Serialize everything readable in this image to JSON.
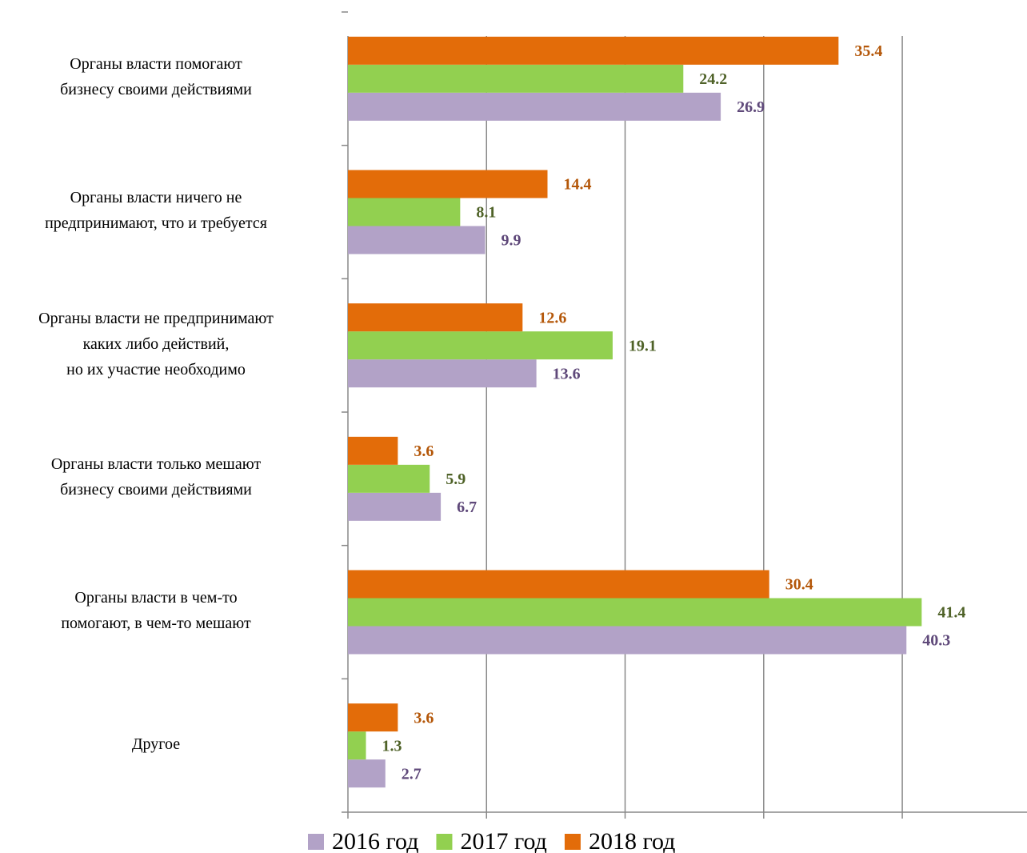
{
  "chart_data": {
    "type": "hbar",
    "categories": [
      "Органы власти помогают\nбизнесу своими действиями",
      "Органы власти ничего не\nпредпринимают, что и требуется",
      "Органы власти не предпринимают\nкаких либо действий,\nно их участие необходимо",
      "Органы власти только мешают\nбизнесу своими действиями",
      "Органы власти в чем-то\nпомогают, в чем-то мешают",
      "Другое"
    ],
    "series": [
      {
        "name": "2016 год",
        "color": "#b2a2c7",
        "label_color": "#5f497a",
        "values": [
          26.9,
          9.9,
          13.6,
          6.7,
          40.3,
          2.7
        ]
      },
      {
        "name": "2017 год",
        "color": "#92d050",
        "label_color": "#4f6228",
        "values": [
          24.2,
          8.1,
          19.1,
          5.9,
          41.4,
          1.3
        ]
      },
      {
        "name": "2018 год",
        "color": "#e36c09",
        "label_color": "#b45709",
        "values": [
          35.4,
          14.4,
          12.6,
          3.6,
          30.4,
          3.6
        ]
      }
    ],
    "xlim": [
      0,
      49
    ],
    "xticks": [
      0,
      10,
      20,
      30,
      40
    ],
    "grid": true,
    "legend": "bottom"
  }
}
